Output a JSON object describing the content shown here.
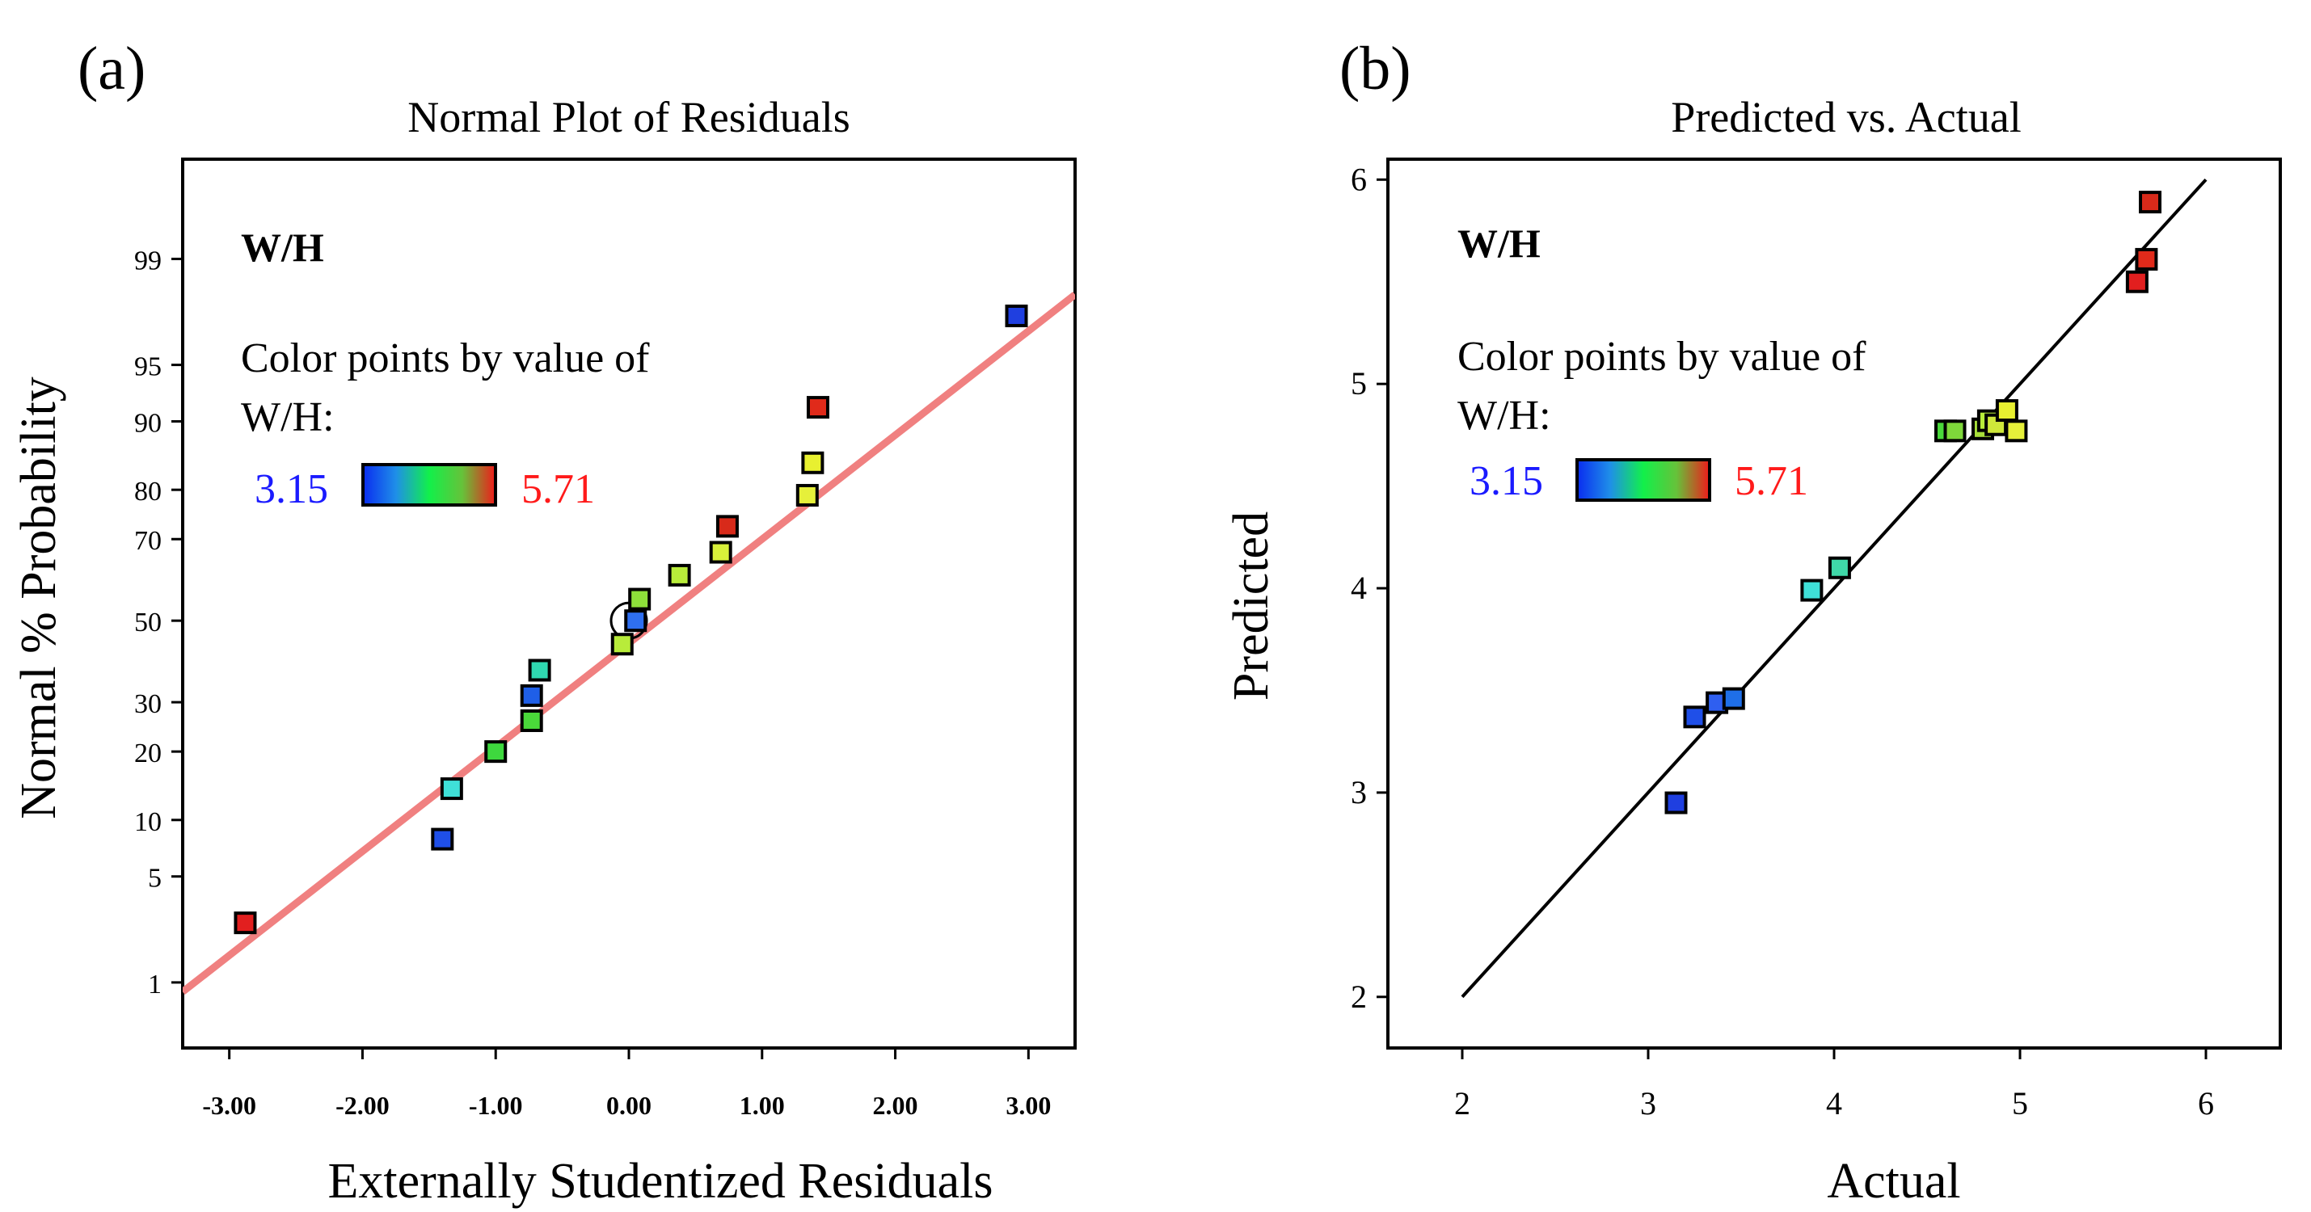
{
  "panels": [
    {
      "label": "(a)",
      "legend": {
        "title": "W/H",
        "line1": "Color points by value of",
        "line2": "W/H:",
        "min_label": "3.15",
        "max_label": "5.71",
        "min_color": "#1a1aff",
        "max_color": "#ff1a1a"
      }
    },
    {
      "label": "(b)",
      "legend": {
        "title": "W/H",
        "line1": "Color points by value of",
        "line2": "W/H:",
        "min_label": "3.15",
        "max_label": "5.71",
        "min_color": "#1a1aff",
        "max_color": "#ff1a1a"
      }
    }
  ],
  "chart_data": [
    {
      "type": "scatter",
      "title": "Normal Plot of Residuals",
      "xlabel": "Externally Studentized Residuals",
      "ylabel": "Normal % Probability",
      "xlim": [
        -3.35,
        3.35
      ],
      "x_ticks": [
        -3,
        -2,
        -1,
        0,
        1,
        2,
        3
      ],
      "x_tick_labels": [
        "-3.00",
        "-2.00",
        "-1.00",
        "0.00",
        "1.00",
        "2.00",
        "3.00"
      ],
      "y_scale": "normal-probability",
      "ylim": [
        0.3,
        99.85
      ],
      "y_ticks": [
        1,
        5,
        10,
        20,
        30,
        50,
        70,
        80,
        90,
        95,
        99
      ],
      "y_tick_labels": [
        "1",
        "5",
        "10",
        "20",
        "30",
        "50",
        "70",
        "80",
        "90",
        "95",
        "99"
      ],
      "reference_line": {
        "x": [
          -3.35,
          3.35
        ],
        "y": [
          0.85,
          98.2
        ],
        "color": "#f08080"
      },
      "highlight_point": {
        "x": 0.0,
        "y": 50.0
      },
      "points": [
        {
          "x": -2.88,
          "y": 2.6,
          "color": "#e21f1f"
        },
        {
          "x": -1.4,
          "y": 8.0,
          "color": "#1f4fe8"
        },
        {
          "x": -1.33,
          "y": 14.0,
          "color": "#3fe0d8"
        },
        {
          "x": -1.0,
          "y": 20.0,
          "color": "#3ed83e"
        },
        {
          "x": -0.73,
          "y": 26.0,
          "color": "#4ad93a"
        },
        {
          "x": -0.73,
          "y": 31.5,
          "color": "#1f5fe8"
        },
        {
          "x": -0.67,
          "y": 37.5,
          "color": "#2fd8b0"
        },
        {
          "x": -0.05,
          "y": 44.0,
          "color": "#b8ec3a"
        },
        {
          "x": 0.05,
          "y": 50.0,
          "color": "#2f6ff0"
        },
        {
          "x": 0.08,
          "y": 55.5,
          "color": "#8ee03a"
        },
        {
          "x": 0.38,
          "y": 61.5,
          "color": "#b8ec3a"
        },
        {
          "x": 0.69,
          "y": 67.0,
          "color": "#d8f03a"
        },
        {
          "x": 0.74,
          "y": 72.8,
          "color": "#d82a1a"
        },
        {
          "x": 1.34,
          "y": 79.0,
          "color": "#e6f03a"
        },
        {
          "x": 1.38,
          "y": 84.5,
          "color": "#e8f030"
        },
        {
          "x": 1.42,
          "y": 91.5,
          "color": "#e02a1a"
        },
        {
          "x": 2.91,
          "y": 97.5,
          "color": "#1f3fe0"
        }
      ]
    },
    {
      "type": "scatter",
      "title": "Predicted vs. Actual",
      "xlabel": "Actual",
      "ylabel": "Predicted",
      "xlim": [
        1.6,
        6.4
      ],
      "ylim": [
        1.75,
        6.1
      ],
      "x_ticks": [
        2,
        3,
        4,
        5,
        6
      ],
      "x_tick_labels": [
        "2",
        "3",
        "4",
        "5",
        "6"
      ],
      "y_ticks": [
        2,
        3,
        4,
        5,
        6
      ],
      "y_tick_labels": [
        "2",
        "3",
        "4",
        "5",
        "6"
      ],
      "reference_line": {
        "x": [
          2,
          6
        ],
        "y": [
          2,
          6
        ],
        "color": "#000000"
      },
      "points": [
        {
          "x": 3.15,
          "y": 2.95,
          "color": "#1f3fe0"
        },
        {
          "x": 3.25,
          "y": 3.37,
          "color": "#1f4fe8"
        },
        {
          "x": 3.37,
          "y": 3.44,
          "color": "#2f5ff0"
        },
        {
          "x": 3.46,
          "y": 3.46,
          "color": "#1f6fe8"
        },
        {
          "x": 3.88,
          "y": 3.99,
          "color": "#3fe0d8"
        },
        {
          "x": 4.03,
          "y": 4.1,
          "color": "#3fd8a8"
        },
        {
          "x": 4.6,
          "y": 4.77,
          "color": "#4ad93a"
        },
        {
          "x": 4.65,
          "y": 4.77,
          "color": "#7ed83a"
        },
        {
          "x": 4.8,
          "y": 4.78,
          "color": "#a8e03a"
        },
        {
          "x": 4.83,
          "y": 4.82,
          "color": "#b8ec3a"
        },
        {
          "x": 4.87,
          "y": 4.8,
          "color": "#cfe83a"
        },
        {
          "x": 4.93,
          "y": 4.87,
          "color": "#e8f030"
        },
        {
          "x": 4.98,
          "y": 4.77,
          "color": "#e6f03a"
        },
        {
          "x": 5.63,
          "y": 5.5,
          "color": "#e21f1f"
        },
        {
          "x": 5.68,
          "y": 5.61,
          "color": "#e02a1a"
        },
        {
          "x": 5.7,
          "y": 5.89,
          "color": "#d82a1a"
        }
      ]
    }
  ]
}
